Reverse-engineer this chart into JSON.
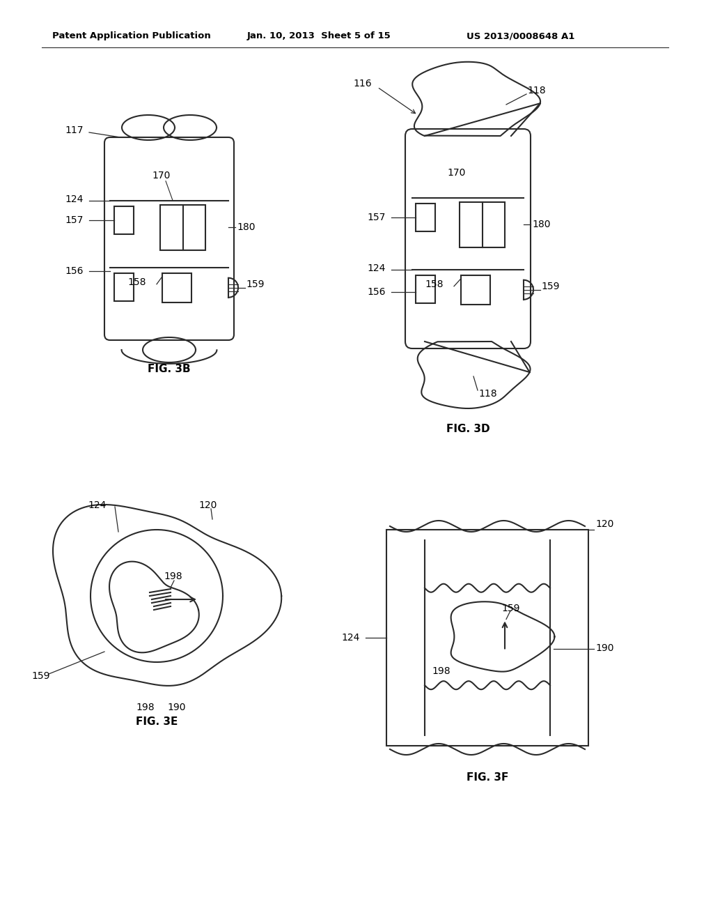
{
  "background_color": "#ffffff",
  "header_left": "Patent Application Publication",
  "header_mid": "Jan. 10, 2013  Sheet 5 of 15",
  "header_right": "US 2013/0008648 A1",
  "fig3b_caption": "FIG. 3B",
  "fig3d_caption": "FIG. 3D",
  "fig3e_caption": "FIG. 3E",
  "fig3f_caption": "FIG. 3F",
  "lc": "#2a2a2a",
  "lw": 1.5,
  "fs": 10
}
